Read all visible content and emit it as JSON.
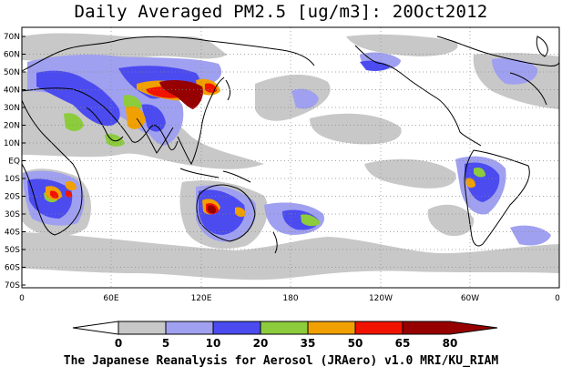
{
  "title": "Daily Averaged PM2.5 [ug/m3]: 20Oct2012",
  "footer": "The Japanese Reanalysis for Aerosol (JRAero) v1.0 MRI/KU_RIAM",
  "lat_labels": [
    "70N",
    "60N",
    "50N",
    "40N",
    "30N",
    "20N",
    "10N",
    "EQ",
    "10S",
    "20S",
    "30S",
    "40S",
    "50S",
    "60S",
    "70S"
  ],
  "lon_labels": [
    "0",
    "60E",
    "120E",
    "180",
    "120W",
    "60W",
    "0"
  ],
  "colorbar": {
    "levels": [
      "0",
      "5",
      "10",
      "20",
      "35",
      "50",
      "65",
      "80"
    ],
    "colors": [
      "#ffffff",
      "#c8c8c8",
      "#a0a0f0",
      "#4b4bf0",
      "#8ccc3c",
      "#f0a000",
      "#f01400",
      "#960000"
    ]
  }
}
